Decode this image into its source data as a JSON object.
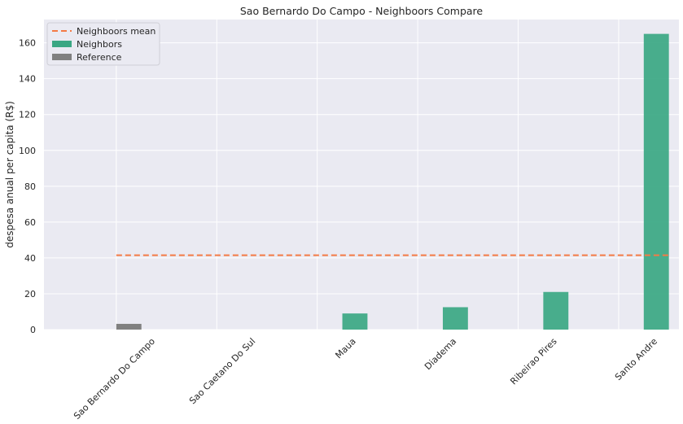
{
  "chart_data": {
    "type": "bar",
    "title": "Sao Bernardo Do Campo - Neighboors Compare",
    "xlabel": "",
    "ylabel": "despesa anual per capita (R$)",
    "categories": [
      "Sao Bernardo Do Campo",
      "Sao Caetano Do Sul",
      "Maua",
      "Diadema",
      "Ribeirao Pires",
      "Santo Andre"
    ],
    "series": [
      {
        "name": "Reference",
        "values": [
          3.2,
          0,
          0,
          0,
          0,
          0
        ],
        "color": "#808080"
      },
      {
        "name": "Neighbors",
        "values": [
          0,
          0,
          9,
          12.5,
          21,
          165
        ],
        "color": "#3aa783"
      }
    ],
    "mean_line": {
      "name": "Neighboors mean",
      "value": 41.5,
      "color": "#f47a45"
    },
    "ylim": [
      0,
      173
    ],
    "yticks": [
      0,
      20,
      40,
      60,
      80,
      100,
      120,
      140,
      160
    ],
    "grid": true,
    "legend_position": "top-left",
    "legend_order": [
      "Neighboors mean",
      "Neighbors",
      "Reference"
    ],
    "background": "#eaeaf2"
  }
}
